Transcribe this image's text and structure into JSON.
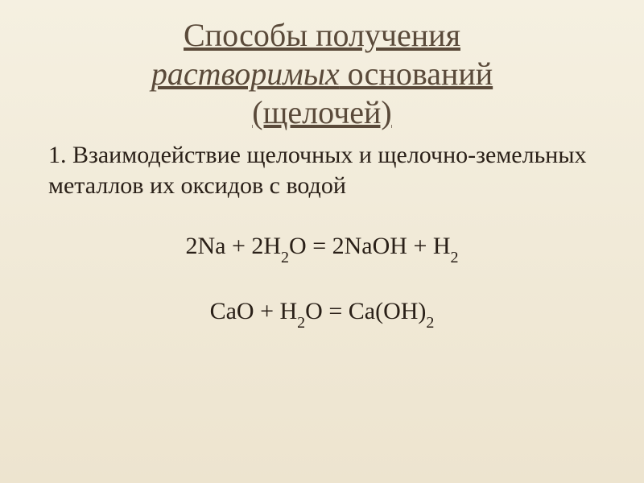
{
  "slide": {
    "title_line1": "Способы получения",
    "title_italic": "растворимых",
    "title_line2_rest": " оснований",
    "title_line3": "(щелочей)",
    "subtitle": "1. Взаимодействие щелочных и щелочно-земельных металлов их оксидов с водой",
    "equation1_parts": {
      "p1": "2Na + 2H",
      "s1": "2",
      "p2": "O = 2NaOH + H",
      "s2": "2"
    },
    "equation2_parts": {
      "p1": "CaO + H",
      "s1": "2",
      "p2": "O = Ca(OH)",
      "s2": "2"
    }
  },
  "styling": {
    "background_gradient_top": "#f5f0e1",
    "background_gradient_bottom": "#ede4cf",
    "title_color": "#5a4a3a",
    "body_text_color": "#2a2018",
    "title_fontsize": 40,
    "body_fontsize": 30,
    "subscript_fontsize": 20,
    "font_family": "Georgia, Times New Roman, serif",
    "slide_width": 800,
    "slide_height": 600
  }
}
